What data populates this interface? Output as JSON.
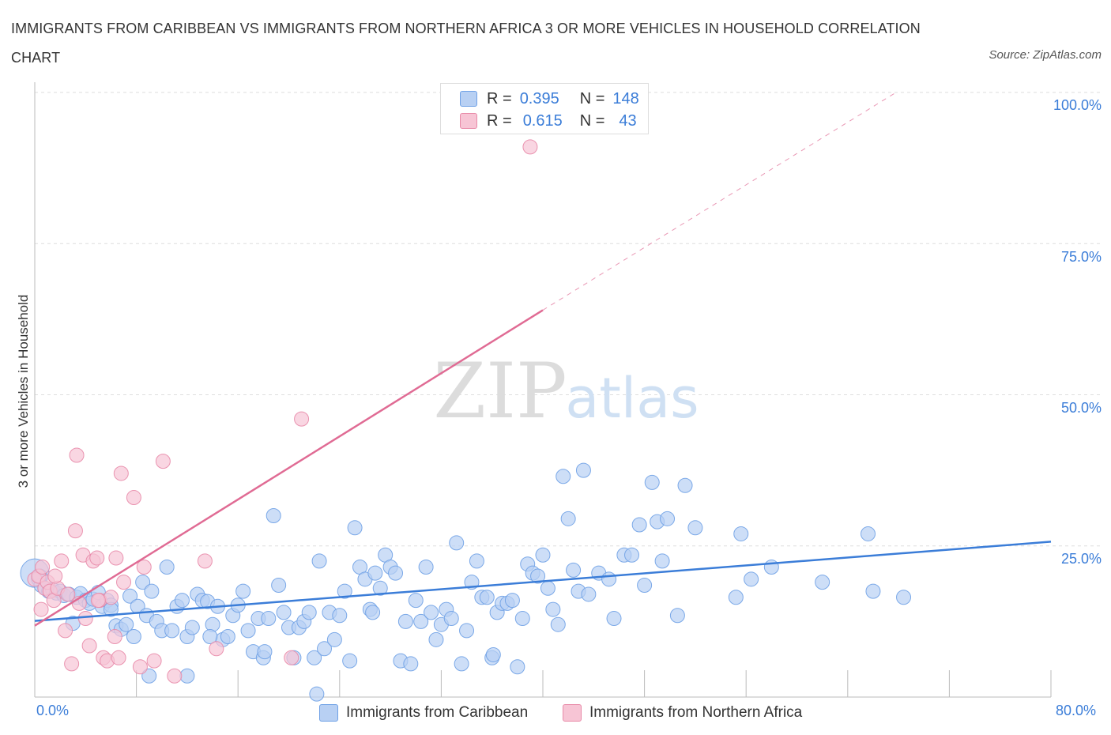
{
  "title": "IMMIGRANTS FROM CARIBBEAN VS IMMIGRANTS FROM NORTHERN AFRICA 3 OR MORE VEHICLES IN HOUSEHOLD CORRELATION CHART",
  "source": "Source: ZipAtlas.com",
  "watermark": {
    "zip": "ZIP",
    "atlas": "atlas"
  },
  "legend": {
    "r_label": "R =",
    "n_label": "N =",
    "series": [
      {
        "r": "0.395",
        "n": "148",
        "color": "#6fa1e6",
        "fill": "#b8d0f3"
      },
      {
        "r": "0.615",
        "n": "43",
        "color": "#e88aa8",
        "fill": "#f7c5d5"
      }
    ]
  },
  "bottom_legend": [
    "Immigrants from Caribbean",
    "Immigrants from Northern Africa"
  ],
  "chart_data": {
    "type": "scatter",
    "title": "IMMIGRANTS FROM CARIBBEAN VS IMMIGRANTS FROM NORTHERN AFRICA 3 OR MORE VEHICLES IN HOUSEHOLD CORRELATION CHART",
    "xlabel": "",
    "ylabel": "3 or more Vehicles in Household",
    "xlim": [
      0,
      80
    ],
    "ylim": [
      0,
      100
    ],
    "x_tick_labels": [
      "0.0%",
      "80.0%"
    ],
    "y_tick_labels": [
      "25.0%",
      "50.0%",
      "75.0%",
      "100.0%"
    ],
    "y_ticks": [
      25,
      50,
      75,
      100
    ],
    "grid": true,
    "legend_position": "top-center",
    "series": [
      {
        "name": "Immigrants from Caribbean",
        "color": "#3b7dd8",
        "r": 0.395,
        "n": 148,
        "trend": {
          "x": [
            0,
            80
          ],
          "y": [
            12.6,
            25.7
          ]
        },
        "points": [
          [
            0.0,
            20.5
          ],
          [
            0.3,
            19.5
          ],
          [
            0.5,
            18.5
          ],
          [
            0.8,
            18
          ],
          [
            1.1,
            17.5
          ],
          [
            1.4,
            17.8
          ],
          [
            1.7,
            17.2
          ],
          [
            2.0,
            17.5
          ],
          [
            2.3,
            16.8
          ],
          [
            2.7,
            17.0
          ],
          [
            3.0,
            12.2
          ],
          [
            3.3,
            16.5
          ],
          [
            3.6,
            17.1
          ],
          [
            4.0,
            16.0
          ],
          [
            4.3,
            15.5
          ],
          [
            4.6,
            16.2
          ],
          [
            5.0,
            17.3
          ],
          [
            5.3,
            15.0
          ],
          [
            5.7,
            16.0
          ],
          [
            6.0,
            15.2
          ],
          [
            6.4,
            11.8
          ],
          [
            6.8,
            11.2
          ],
          [
            7.2,
            12.0
          ],
          [
            7.5,
            16.7
          ],
          [
            7.8,
            10.0
          ],
          [
            8.1,
            15.0
          ],
          [
            8.5,
            19.0
          ],
          [
            8.8,
            13.5
          ],
          [
            9.2,
            17.5
          ],
          [
            9.6,
            12.5
          ],
          [
            10.0,
            11.0
          ],
          [
            10.4,
            21.5
          ],
          [
            10.8,
            11.0
          ],
          [
            11.2,
            15.0
          ],
          [
            11.6,
            16.0
          ],
          [
            12.0,
            10.0
          ],
          [
            12.4,
            11.5
          ],
          [
            12.8,
            17.0
          ],
          [
            13.2,
            16.0
          ],
          [
            13.6,
            15.8
          ],
          [
            14.0,
            12.0
          ],
          [
            14.4,
            15.0
          ],
          [
            14.8,
            9.5
          ],
          [
            15.2,
            10.0
          ],
          [
            15.6,
            13.5
          ],
          [
            16.0,
            15.2
          ],
          [
            16.4,
            17.5
          ],
          [
            16.8,
            11.0
          ],
          [
            17.2,
            7.5
          ],
          [
            17.6,
            13.0
          ],
          [
            18.0,
            6.5
          ],
          [
            18.4,
            13.0
          ],
          [
            18.8,
            30.0
          ],
          [
            19.2,
            18.5
          ],
          [
            19.6,
            14.0
          ],
          [
            20.0,
            11.5
          ],
          [
            20.4,
            6.5
          ],
          [
            20.8,
            11.5
          ],
          [
            21.2,
            12.5
          ],
          [
            21.6,
            14.0
          ],
          [
            22.0,
            6.5
          ],
          [
            22.4,
            22.5
          ],
          [
            22.8,
            8.0
          ],
          [
            23.2,
            14.0
          ],
          [
            23.6,
            9.5
          ],
          [
            24.0,
            13.5
          ],
          [
            24.4,
            17.5
          ],
          [
            24.8,
            6.0
          ],
          [
            25.2,
            28.0
          ],
          [
            25.6,
            21.5
          ],
          [
            26.0,
            19.5
          ],
          [
            26.4,
            14.5
          ],
          [
            26.8,
            20.5
          ],
          [
            27.2,
            18.0
          ],
          [
            27.6,
            23.5
          ],
          [
            28.0,
            21.5
          ],
          [
            28.4,
            20.5
          ],
          [
            28.8,
            6.0
          ],
          [
            29.2,
            12.5
          ],
          [
            29.6,
            5.5
          ],
          [
            30.0,
            16.0
          ],
          [
            30.4,
            12.5
          ],
          [
            30.8,
            21.5
          ],
          [
            31.2,
            14.0
          ],
          [
            31.6,
            9.5
          ],
          [
            32.0,
            12.0
          ],
          [
            32.4,
            14.5
          ],
          [
            32.8,
            13.0
          ],
          [
            33.2,
            25.5
          ],
          [
            33.6,
            5.5
          ],
          [
            34.0,
            11.0
          ],
          [
            34.4,
            19.0
          ],
          [
            34.8,
            22.5
          ],
          [
            35.2,
            16.5
          ],
          [
            35.6,
            16.5
          ],
          [
            36.0,
            6.5
          ],
          [
            36.4,
            14.0
          ],
          [
            36.8,
            15.5
          ],
          [
            37.2,
            15.5
          ],
          [
            37.6,
            16.0
          ],
          [
            38.0,
            5.0
          ],
          [
            38.4,
            13.0
          ],
          [
            38.8,
            22.0
          ],
          [
            39.2,
            20.5
          ],
          [
            39.6,
            20.0
          ],
          [
            40.0,
            23.5
          ],
          [
            40.4,
            18.0
          ],
          [
            40.8,
            14.5
          ],
          [
            41.2,
            12.0
          ],
          [
            41.6,
            36.5
          ],
          [
            42.0,
            29.5
          ],
          [
            42.4,
            21.0
          ],
          [
            42.8,
            17.5
          ],
          [
            43.2,
            37.5
          ],
          [
            43.6,
            17.0
          ],
          [
            44.4,
            20.5
          ],
          [
            45.2,
            19.5
          ],
          [
            45.6,
            13.0
          ],
          [
            46.4,
            23.5
          ],
          [
            47.0,
            23.5
          ],
          [
            47.6,
            28.5
          ],
          [
            48.0,
            18.5
          ],
          [
            48.6,
            35.5
          ],
          [
            49.0,
            29.0
          ],
          [
            49.4,
            22.5
          ],
          [
            49.8,
            29.5
          ],
          [
            50.6,
            13.5
          ],
          [
            51.2,
            35.0
          ],
          [
            52.0,
            28.0
          ],
          [
            55.2,
            16.5
          ],
          [
            55.6,
            27.0
          ],
          [
            56.4,
            19.5
          ],
          [
            58.0,
            21.5
          ],
          [
            62.0,
            19.0
          ],
          [
            65.6,
            27.0
          ],
          [
            66.0,
            17.5
          ],
          [
            68.4,
            16.5
          ],
          [
            22.2,
            0.5
          ],
          [
            9.0,
            3.5
          ],
          [
            12.0,
            3.5
          ],
          [
            13.8,
            10.0
          ],
          [
            6.0,
            14.5
          ],
          [
            26.6,
            14.0
          ],
          [
            18.1,
            7.5
          ],
          [
            36.1,
            7.0
          ],
          [
            0.4,
            20.0
          ]
        ]
      },
      {
        "name": "Immigrants from Northern Africa",
        "color": "#e06b94",
        "r": 0.615,
        "n": 43,
        "trend": {
          "x": [
            0,
            40
          ],
          "y": [
            11.8,
            64.0
          ]
        },
        "trend_extension": {
          "x": [
            40,
            67.8
          ],
          "y": [
            64.0,
            100
          ]
        },
        "points": [
          [
            0.0,
            19.5
          ],
          [
            0.3,
            20.0
          ],
          [
            0.5,
            14.5
          ],
          [
            0.8,
            18.0
          ],
          [
            1.0,
            19.0
          ],
          [
            1.2,
            17.5
          ],
          [
            1.5,
            16.0
          ],
          [
            1.8,
            18.0
          ],
          [
            2.1,
            22.5
          ],
          [
            2.4,
            11.0
          ],
          [
            2.6,
            17.0
          ],
          [
            2.9,
            5.5
          ],
          [
            3.2,
            27.5
          ],
          [
            3.3,
            40.0
          ],
          [
            3.5,
            15.5
          ],
          [
            3.8,
            23.5
          ],
          [
            4.0,
            13.0
          ],
          [
            4.3,
            8.5
          ],
          [
            4.6,
            22.5
          ],
          [
            4.9,
            23.0
          ],
          [
            5.1,
            16.0
          ],
          [
            5.4,
            6.5
          ],
          [
            5.7,
            6.0
          ],
          [
            6.0,
            16.5
          ],
          [
            6.3,
            10.0
          ],
          [
            6.6,
            6.5
          ],
          [
            6.8,
            37.0
          ],
          [
            7.0,
            19.0
          ],
          [
            7.8,
            33.0
          ],
          [
            8.3,
            5.0
          ],
          [
            8.6,
            21.5
          ],
          [
            9.4,
            6.0
          ],
          [
            10.1,
            39.0
          ],
          [
            11.0,
            3.5
          ],
          [
            13.4,
            22.5
          ],
          [
            14.3,
            8.0
          ],
          [
            20.2,
            6.5
          ],
          [
            21.0,
            46.0
          ],
          [
            39.0,
            91.0
          ],
          [
            0.6,
            21.5
          ],
          [
            1.6,
            20.0
          ],
          [
            5.0,
            16.0
          ],
          [
            6.4,
            23.0
          ]
        ]
      }
    ]
  }
}
